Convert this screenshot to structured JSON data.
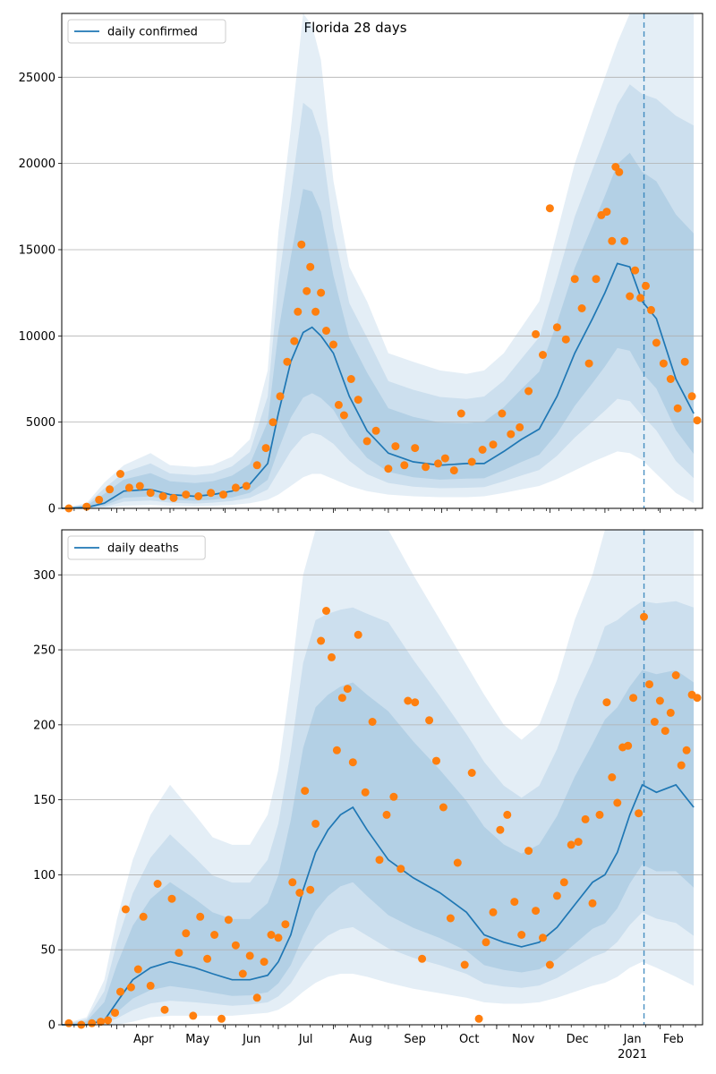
{
  "title": "Florida 28 days",
  "colors": {
    "line": "#1f77b4",
    "points": "#ff7f0e",
    "band": "#1f77b4",
    "grid": "#b0b0b0"
  },
  "chart_data": [
    {
      "type": "line",
      "legend": "daily confirmed",
      "legend_position": "top-left",
      "ylim": [
        0,
        28700
      ],
      "yticks": [
        0,
        5000,
        10000,
        15000,
        20000,
        25000
      ],
      "grid_y": true,
      "series": [
        {
          "name": "daily confirmed",
          "x": [
            "2020-03-01",
            "2020-03-15",
            "2020-03-25",
            "2020-04-05",
            "2020-04-20",
            "2020-05-01",
            "2020-05-15",
            "2020-05-25",
            "2020-06-05",
            "2020-06-15",
            "2020-06-25",
            "2020-07-01",
            "2020-07-08",
            "2020-07-15",
            "2020-07-20",
            "2020-07-25",
            "2020-08-01",
            "2020-08-10",
            "2020-08-20",
            "2020-09-01",
            "2020-09-15",
            "2020-09-30",
            "2020-10-15",
            "2020-10-25",
            "2020-11-05",
            "2020-11-15",
            "2020-11-25",
            "2020-12-05",
            "2020-12-15",
            "2020-12-25",
            "2021-01-01",
            "2021-01-08",
            "2021-01-15",
            "2021-01-22",
            "2021-01-30",
            "2021-02-10",
            "2021-02-20"
          ],
          "y": [
            0,
            50,
            300,
            1000,
            1100,
            800,
            700,
            800,
            1000,
            1400,
            2600,
            5500,
            8500,
            10200,
            10500,
            10000,
            9000,
            6500,
            4500,
            3200,
            2700,
            2500,
            2600,
            2600,
            3300,
            4000,
            4600,
            6500,
            9000,
            11000,
            12500,
            14200,
            14000,
            12000,
            11000,
            7500,
            5500
          ]
        }
      ],
      "band_upper": {
        "x": [
          "2020-03-01",
          "2020-03-15",
          "2020-03-25",
          "2020-04-05",
          "2020-04-20",
          "2020-05-01",
          "2020-05-15",
          "2020-05-25",
          "2020-06-05",
          "2020-06-15",
          "2020-06-25",
          "2020-07-01",
          "2020-07-08",
          "2020-07-15",
          "2020-07-20",
          "2020-07-25",
          "2020-08-01",
          "2020-08-10",
          "2020-08-20",
          "2020-09-01",
          "2020-09-15",
          "2020-09-30",
          "2020-10-15",
          "2020-10-25",
          "2020-11-05",
          "2020-11-15",
          "2020-11-25",
          "2020-12-05",
          "2020-12-15",
          "2020-12-25",
          "2021-01-01",
          "2021-01-08",
          "2021-01-15",
          "2021-01-22",
          "2021-01-30",
          "2021-02-10",
          "2021-02-20"
        ],
        "y": [
          0,
          300,
          1500,
          2500,
          3200,
          2500,
          2400,
          2500,
          3000,
          4000,
          8000,
          16000,
          22000,
          28700,
          28000,
          26000,
          19000,
          14000,
          12000,
          9000,
          8500,
          8000,
          7800,
          8000,
          9000,
          10500,
          12000,
          16000,
          20000,
          23000,
          25000,
          27000,
          28700,
          28700,
          28700,
          28700,
          28700
        ]
      },
      "band_lower": {
        "x": [
          "2020-03-01",
          "2020-03-15",
          "2020-03-25",
          "2020-04-05",
          "2020-04-20",
          "2020-05-01",
          "2020-05-15",
          "2020-05-25",
          "2020-06-05",
          "2020-06-15",
          "2020-06-25",
          "2020-07-01",
          "2020-07-08",
          "2020-07-15",
          "2020-07-20",
          "2020-07-25",
          "2020-08-01",
          "2020-08-10",
          "2020-08-20",
          "2020-09-01",
          "2020-09-15",
          "2020-09-30",
          "2020-10-15",
          "2020-10-25",
          "2020-11-05",
          "2020-11-15",
          "2020-11-25",
          "2020-12-05",
          "2020-12-15",
          "2020-12-25",
          "2021-01-01",
          "2021-01-08",
          "2021-01-15",
          "2021-01-22",
          "2021-01-30",
          "2021-02-10",
          "2021-02-20"
        ],
        "y": [
          0,
          0,
          0,
          150,
          200,
          150,
          120,
          150,
          200,
          300,
          500,
          800,
          1300,
          1800,
          2000,
          2000,
          1700,
          1300,
          1000,
          800,
          700,
          650,
          650,
          700,
          900,
          1100,
          1300,
          1700,
          2200,
          2700,
          3000,
          3300,
          3200,
          2800,
          2000,
          900,
          300
        ]
      },
      "forecast_start": "2021-01-23",
      "observed": {
        "x": [
          "2020-03-05",
          "2020-03-15",
          "2020-03-22",
          "2020-03-28",
          "2020-04-03",
          "2020-04-08",
          "2020-04-14",
          "2020-04-20",
          "2020-04-27",
          "2020-05-03",
          "2020-05-10",
          "2020-05-17",
          "2020-05-24",
          "2020-05-31",
          "2020-06-07",
          "2020-06-13",
          "2020-06-19",
          "2020-06-24",
          "2020-06-28",
          "2020-07-02",
          "2020-07-06",
          "2020-07-10",
          "2020-07-12",
          "2020-07-14",
          "2020-07-17",
          "2020-07-19",
          "2020-07-22",
          "2020-07-25",
          "2020-07-28",
          "2020-08-01",
          "2020-08-04",
          "2020-08-07",
          "2020-08-11",
          "2020-08-15",
          "2020-08-20",
          "2020-08-25",
          "2020-09-01",
          "2020-09-05",
          "2020-09-10",
          "2020-09-16",
          "2020-09-22",
          "2020-09-29",
          "2020-10-03",
          "2020-10-08",
          "2020-10-12",
          "2020-10-18",
          "2020-10-24",
          "2020-10-30",
          "2020-11-04",
          "2020-11-09",
          "2020-11-14",
          "2020-11-19",
          "2020-11-23",
          "2020-11-27",
          "2020-12-01",
          "2020-12-05",
          "2020-12-10",
          "2020-12-15",
          "2020-12-19",
          "2020-12-23",
          "2020-12-27",
          "2020-12-30",
          "2021-01-02",
          "2021-01-05",
          "2021-01-07",
          "2021-01-09",
          "2021-01-12",
          "2021-01-15",
          "2021-01-18",
          "2021-01-21",
          "2021-01-24",
          "2021-01-27",
          "2021-01-30",
          "2021-02-03",
          "2021-02-07",
          "2021-02-11",
          "2021-02-15",
          "2021-02-19",
          "2021-02-22"
        ],
        "y": [
          0,
          100,
          500,
          1100,
          2000,
          1200,
          1300,
          900,
          700,
          600,
          800,
          700,
          900,
          800,
          1200,
          1300,
          2500,
          3500,
          5000,
          6500,
          8500,
          9700,
          11400,
          15300,
          12600,
          14000,
          11400,
          12500,
          10300,
          9500,
          6000,
          5400,
          7500,
          6300,
          3900,
          4500,
          2300,
          3600,
          2500,
          3500,
          2400,
          2600,
          2900,
          2200,
          5500,
          2700,
          3400,
          3700,
          5500,
          4300,
          4700,
          6800,
          10100,
          8900,
          17400,
          10500,
          9800,
          13300,
          11600,
          8400,
          13300,
          17000,
          17200,
          15500,
          19800,
          19500,
          15500,
          12300,
          13800,
          12200,
          12900,
          11500,
          9600,
          8400,
          7500,
          5800,
          8500,
          6500,
          5100
        ]
      }
    },
    {
      "type": "line",
      "legend": "daily deaths",
      "legend_position": "top-left",
      "ylim": [
        0,
        330
      ],
      "yticks": [
        0,
        50,
        100,
        150,
        200,
        250,
        300
      ],
      "grid_y": true,
      "series": [
        {
          "name": "daily deaths",
          "x": [
            "2020-03-01",
            "2020-03-15",
            "2020-03-25",
            "2020-04-01",
            "2020-04-10",
            "2020-04-20",
            "2020-05-01",
            "2020-05-15",
            "2020-05-25",
            "2020-06-05",
            "2020-06-15",
            "2020-06-25",
            "2020-07-01",
            "2020-07-08",
            "2020-07-15",
            "2020-07-22",
            "2020-07-29",
            "2020-08-05",
            "2020-08-12",
            "2020-08-20",
            "2020-09-01",
            "2020-09-15",
            "2020-09-30",
            "2020-10-15",
            "2020-10-25",
            "2020-11-05",
            "2020-11-15",
            "2020-11-25",
            "2020-12-05",
            "2020-12-15",
            "2020-12-25",
            "2021-01-01",
            "2021-01-08",
            "2021-01-15",
            "2021-01-22",
            "2021-01-30",
            "2021-02-10",
            "2021-02-20"
          ],
          "y": [
            0,
            0,
            3,
            15,
            30,
            38,
            42,
            38,
            34,
            30,
            30,
            33,
            42,
            60,
            90,
            115,
            130,
            140,
            145,
            130,
            110,
            98,
            88,
            75,
            60,
            55,
            52,
            55,
            65,
            80,
            95,
            100,
            115,
            140,
            160,
            155,
            160,
            145
          ]
        }
      ],
      "band_upper": {
        "x": [
          "2020-03-01",
          "2020-03-15",
          "2020-03-25",
          "2020-04-01",
          "2020-04-10",
          "2020-04-20",
          "2020-05-01",
          "2020-05-15",
          "2020-05-25",
          "2020-06-05",
          "2020-06-15",
          "2020-06-25",
          "2020-07-01",
          "2020-07-08",
          "2020-07-15",
          "2020-07-22",
          "2020-07-29",
          "2020-08-05",
          "2020-08-12",
          "2020-08-20",
          "2020-09-01",
          "2020-09-15",
          "2020-09-30",
          "2020-10-15",
          "2020-10-25",
          "2020-11-05",
          "2020-11-15",
          "2020-11-25",
          "2020-12-05",
          "2020-12-15",
          "2020-12-25",
          "2021-01-01",
          "2021-01-08",
          "2021-01-15",
          "2021-01-22",
          "2021-01-30",
          "2021-02-10",
          "2021-02-20"
        ],
        "y": [
          0,
          5,
          30,
          70,
          110,
          140,
          160,
          140,
          125,
          120,
          120,
          140,
          170,
          230,
          300,
          330,
          330,
          330,
          330,
          330,
          330,
          300,
          270,
          240,
          220,
          200,
          190,
          200,
          230,
          270,
          300,
          330,
          330,
          330,
          330,
          330,
          330,
          330
        ]
      },
      "band_lower": {
        "x": [
          "2020-03-01",
          "2020-03-15",
          "2020-03-25",
          "2020-04-01",
          "2020-04-10",
          "2020-04-20",
          "2020-05-01",
          "2020-05-15",
          "2020-05-25",
          "2020-06-05",
          "2020-06-15",
          "2020-06-25",
          "2020-07-01",
          "2020-07-08",
          "2020-07-15",
          "2020-07-22",
          "2020-07-29",
          "2020-08-05",
          "2020-08-12",
          "2020-08-20",
          "2020-09-01",
          "2020-09-15",
          "2020-09-30",
          "2020-10-15",
          "2020-10-25",
          "2020-11-05",
          "2020-11-15",
          "2020-11-25",
          "2020-12-05",
          "2020-12-15",
          "2020-12-25",
          "2021-01-01",
          "2021-01-08",
          "2021-01-15",
          "2021-01-22",
          "2021-01-30",
          "2021-02-10",
          "2021-02-20"
        ],
        "y": [
          0,
          0,
          0,
          0,
          2,
          5,
          6,
          6,
          6,
          6,
          7,
          8,
          10,
          15,
          22,
          28,
          32,
          34,
          34,
          32,
          28,
          24,
          21,
          18,
          15,
          14,
          14,
          15,
          18,
          22,
          26,
          28,
          32,
          38,
          42,
          38,
          32,
          26
        ]
      },
      "forecast_start": "2021-01-23",
      "observed": {
        "x": [
          "2020-03-05",
          "2020-03-12",
          "2020-03-18",
          "2020-03-23",
          "2020-03-27",
          "2020-03-31",
          "2020-04-03",
          "2020-04-06",
          "2020-04-09",
          "2020-04-13",
          "2020-04-16",
          "2020-04-20",
          "2020-04-24",
          "2020-04-28",
          "2020-05-02",
          "2020-05-06",
          "2020-05-10",
          "2020-05-14",
          "2020-05-18",
          "2020-05-22",
          "2020-05-26",
          "2020-05-30",
          "2020-06-03",
          "2020-06-07",
          "2020-06-11",
          "2020-06-15",
          "2020-06-19",
          "2020-06-23",
          "2020-06-27",
          "2020-07-01",
          "2020-07-05",
          "2020-07-09",
          "2020-07-13",
          "2020-07-16",
          "2020-07-19",
          "2020-07-22",
          "2020-07-25",
          "2020-07-28",
          "2020-07-31",
          "2020-08-03",
          "2020-08-06",
          "2020-08-09",
          "2020-08-12",
          "2020-08-15",
          "2020-08-19",
          "2020-08-23",
          "2020-08-27",
          "2020-08-31",
          "2020-09-04",
          "2020-09-08",
          "2020-09-12",
          "2020-09-16",
          "2020-09-20",
          "2020-09-24",
          "2020-09-28",
          "2020-10-02",
          "2020-10-06",
          "2020-10-10",
          "2020-10-14",
          "2020-10-18",
          "2020-10-22",
          "2020-10-26",
          "2020-10-30",
          "2020-11-03",
          "2020-11-07",
          "2020-11-11",
          "2020-11-15",
          "2020-11-19",
          "2020-11-23",
          "2020-11-27",
          "2020-12-01",
          "2020-12-05",
          "2020-12-09",
          "2020-12-13",
          "2020-12-17",
          "2020-12-21",
          "2020-12-25",
          "2020-12-29",
          "2021-01-02",
          "2021-01-05",
          "2021-01-08",
          "2021-01-11",
          "2021-01-14",
          "2021-01-17",
          "2021-01-20",
          "2021-01-23",
          "2021-01-26",
          "2021-01-29",
          "2021-02-01",
          "2021-02-04",
          "2021-02-07",
          "2021-02-10",
          "2021-02-13",
          "2021-02-16",
          "2021-02-19",
          "2021-02-22"
        ],
        "y": [
          1,
          0,
          1,
          2,
          3,
          8,
          22,
          77,
          25,
          37,
          72,
          26,
          94,
          10,
          84,
          48,
          61,
          6,
          72,
          44,
          60,
          4,
          70,
          53,
          34,
          46,
          18,
          42,
          60,
          58,
          67,
          95,
          88,
          156,
          90,
          134,
          256,
          276,
          245,
          183,
          218,
          224,
          175,
          260,
          155,
          202,
          110,
          140,
          152,
          104,
          216,
          215,
          44,
          203,
          176,
          145,
          71,
          108,
          40,
          168,
          4,
          55,
          75,
          130,
          140,
          82,
          60,
          116,
          76,
          58,
          40,
          86,
          95,
          120,
          122,
          137,
          81,
          140,
          215,
          165,
          148,
          185,
          186,
          218,
          141,
          272,
          227,
          202,
          216,
          196,
          208,
          233,
          173,
          183,
          220,
          218
        ]
      }
    }
  ],
  "x_axis": {
    "tick_labels": [
      "Apr",
      "May",
      "Jun",
      "Jul",
      "Aug",
      "Sep",
      "Oct",
      "Nov",
      "Dec",
      "Jan",
      "Feb"
    ],
    "year_label": "2021"
  }
}
